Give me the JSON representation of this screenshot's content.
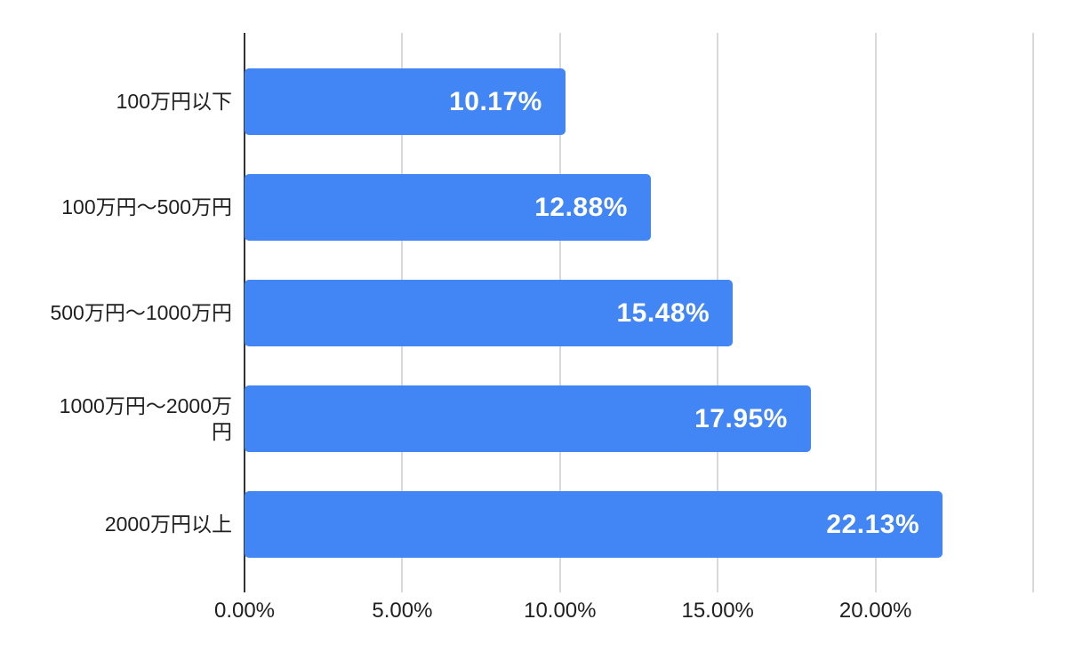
{
  "chart_data": {
    "type": "bar",
    "orientation": "horizontal",
    "title": "",
    "xlabel": "",
    "ylabel": "",
    "categories": [
      "100万円以下",
      "100万円〜500万円",
      "500万円〜1000万円",
      "1000万円〜2000万円",
      "2000万円以上"
    ],
    "categories_display": [
      "100万円以下",
      "100万円〜500万円",
      "500万円〜1000万円",
      "1000万円〜2000万\n円",
      "2000万円以上"
    ],
    "values": [
      10.17,
      12.88,
      15.48,
      17.95,
      22.13
    ],
    "value_labels": [
      "10.17%",
      "12.88%",
      "15.48%",
      "17.95%",
      "22.13%"
    ],
    "x_ticks": [
      "0.00%",
      "5.00%",
      "10.00%",
      "15.00%",
      "20.00%"
    ],
    "x_tick_values": [
      0,
      5,
      10,
      15,
      20
    ],
    "xlim": [
      0,
      25
    ],
    "grid": true,
    "legend": "none",
    "colors": {
      "bar": "#4285f4",
      "value_label": "#ffffff",
      "axis_line": "#333333",
      "gridline": "#d9d9d9",
      "text": "#1f1f1f",
      "background": "#ffffff"
    }
  }
}
